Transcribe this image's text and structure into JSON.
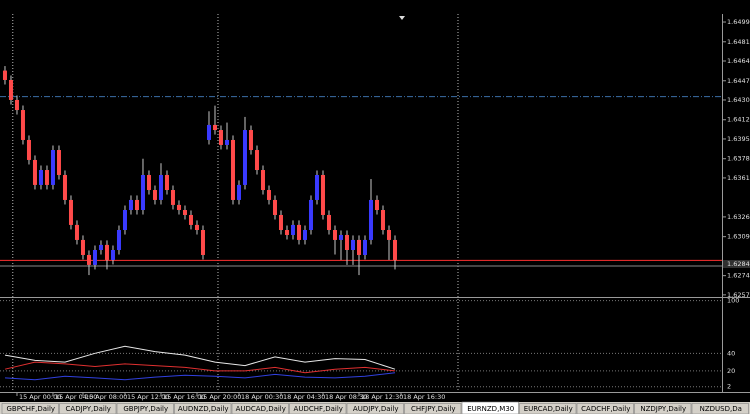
{
  "chart_data": {
    "type": "candlestick",
    "bull_color": "#3a3aff",
    "bear_color": "#ff4a4a",
    "wick_color": "#c8c8c8",
    "ohlc": [
      [
        1.6456,
        1.646,
        1.64437,
        1.64477
      ],
      [
        1.64477,
        1.64517,
        1.6426,
        1.643
      ],
      [
        1.643,
        1.6434,
        1.64171,
        1.64211
      ],
      [
        1.64211,
        1.64251,
        1.63906,
        1.63946
      ],
      [
        1.63946,
        1.63986,
        1.63729,
        1.63769
      ],
      [
        1.63769,
        1.63809,
        1.63508,
        1.63548
      ],
      [
        1.63548,
        1.6372,
        1.63508,
        1.6368
      ],
      [
        1.6368,
        1.6372,
        1.63508,
        1.63548
      ],
      [
        1.63548,
        1.63897,
        1.63508,
        1.63857
      ],
      [
        1.63857,
        1.63897,
        1.63596,
        1.63636
      ],
      [
        1.63636,
        1.63676,
        1.63375,
        1.63415
      ],
      [
        1.63415,
        1.63455,
        1.63154,
        1.63194
      ],
      [
        1.63194,
        1.63234,
        1.63021,
        1.63061
      ],
      [
        1.63061,
        1.63101,
        1.62888,
        1.62928
      ],
      [
        1.62928,
        1.62968,
        1.6275,
        1.6284
      ],
      [
        1.6284,
        1.63012,
        1.628,
        1.62972
      ],
      [
        1.62972,
        1.63057,
        1.62932,
        1.63017
      ],
      [
        1.63017,
        1.63057,
        1.628,
        1.62884
      ],
      [
        1.62884,
        1.63012,
        1.62844,
        1.62972
      ],
      [
        1.62972,
        1.63189,
        1.62932,
        1.63149
      ],
      [
        1.63149,
        1.63366,
        1.63109,
        1.63326
      ],
      [
        1.63326,
        1.63455,
        1.63286,
        1.63415
      ],
      [
        1.63415,
        1.63455,
        1.63286,
        1.63326
      ],
      [
        1.63326,
        1.6378,
        1.63286,
        1.63636
      ],
      [
        1.63636,
        1.63676,
        1.63463,
        1.63503
      ],
      [
        1.63503,
        1.63543,
        1.63375,
        1.63415
      ],
      [
        1.63415,
        1.6374,
        1.63375,
        1.63636
      ],
      [
        1.63636,
        1.63676,
        1.63463,
        1.63503
      ],
      [
        1.63503,
        1.63543,
        1.63331,
        1.63371
      ],
      [
        1.63371,
        1.63411,
        1.63286,
        1.63326
      ],
      [
        1.63326,
        1.63366,
        1.63242,
        1.63282
      ],
      [
        1.63282,
        1.63322,
        1.63154,
        1.63194
      ],
      [
        1.63194,
        1.63234,
        1.63109,
        1.63149
      ],
      [
        1.63149,
        1.63189,
        1.62888,
        1.62928
      ],
      [
        1.63946,
        1.642,
        1.63906,
        1.64079
      ],
      [
        1.64079,
        1.6425,
        1.63994,
        1.64034
      ],
      [
        1.64034,
        1.64074,
        1.63862,
        1.63902
      ],
      [
        1.63902,
        1.641,
        1.63862,
        1.63946
      ],
      [
        1.63946,
        1.63986,
        1.63375,
        1.63415
      ],
      [
        1.63415,
        1.63588,
        1.63375,
        1.63548
      ],
      [
        1.63548,
        1.6415,
        1.63508,
        1.64034
      ],
      [
        1.64034,
        1.64074,
        1.63817,
        1.63857
      ],
      [
        1.63857,
        1.63897,
        1.6364,
        1.6368
      ],
      [
        1.6368,
        1.6372,
        1.63463,
        1.63503
      ],
      [
        1.63503,
        1.63543,
        1.63375,
        1.63415
      ],
      [
        1.63415,
        1.63455,
        1.63242,
        1.63282
      ],
      [
        1.63282,
        1.63322,
        1.63109,
        1.63149
      ],
      [
        1.63149,
        1.63189,
        1.63065,
        1.63105
      ],
      [
        1.63105,
        1.63234,
        1.63065,
        1.63194
      ],
      [
        1.63194,
        1.63234,
        1.63021,
        1.63061
      ],
      [
        1.63061,
        1.63189,
        1.63021,
        1.63149
      ],
      [
        1.63149,
        1.63455,
        1.63109,
        1.63415
      ],
      [
        1.63415,
        1.63676,
        1.63375,
        1.63636
      ],
      [
        1.63636,
        1.63676,
        1.63242,
        1.63282
      ],
      [
        1.63282,
        1.63322,
        1.63109,
        1.63149
      ],
      [
        1.63149,
        1.63189,
        1.62932,
        1.63061
      ],
      [
        1.63061,
        1.63145,
        1.62884,
        1.63105
      ],
      [
        1.63105,
        1.63145,
        1.6284,
        1.62972
      ],
      [
        1.62972,
        1.63101,
        1.6284,
        1.63061
      ],
      [
        1.63061,
        1.63101,
        1.6275,
        1.62928
      ],
      [
        1.62928,
        1.63101,
        1.62888,
        1.63061
      ],
      [
        1.63061,
        1.636,
        1.63021,
        1.63415
      ],
      [
        1.63415,
        1.63455,
        1.63286,
        1.63326
      ],
      [
        1.63326,
        1.63366,
        1.63109,
        1.63149
      ],
      [
        1.63149,
        1.63189,
        1.62884,
        1.63061
      ],
      [
        1.63061,
        1.63101,
        1.628,
        1.62884
      ]
    ],
    "xlim": [
      -0.83,
      119.5
    ],
    "ylim": [
      1.62556,
      1.65061
    ],
    "yticks": [
      {
        "value": 1.6499,
        "label": "1.64990"
      },
      {
        "value": 1.64815,
        "label": "1.64815"
      },
      {
        "value": 1.64645,
        "label": "1.64645"
      },
      {
        "value": 1.6447,
        "label": "1.64470"
      },
      {
        "value": 1.643,
        "label": "1.64300"
      },
      {
        "value": 1.64125,
        "label": "1.64125"
      },
      {
        "value": 1.63955,
        "label": "1.63955"
      },
      {
        "value": 1.6378,
        "label": "1.63780"
      },
      {
        "value": 1.6361,
        "label": "1.63610"
      },
      {
        "value": 1.63265,
        "label": "1.63265"
      },
      {
        "value": 1.6309,
        "label": "1.63090"
      },
      {
        "value": 1.62745,
        "label": "1.62745"
      },
      {
        "value": 1.62575,
        "label": "1.62575"
      }
    ],
    "xticks": [
      {
        "value": 2,
        "label": "15 Apr 00:00"
      },
      {
        "value": 8,
        "label": "15 Apr 04:00"
      },
      {
        "value": 13,
        "label": "15 Apr 08:00"
      },
      {
        "value": 20,
        "label": "15 Apr 12:00"
      },
      {
        "value": 26,
        "label": "15 Apr 16:00"
      },
      {
        "value": 32,
        "label": "15 Apr 20:00"
      },
      {
        "value": 39,
        "label": "18 Apr 00:30"
      },
      {
        "value": 46,
        "label": "18 Apr 04:30"
      },
      {
        "value": 53,
        "label": "18 Apr 08:30"
      },
      {
        "value": 59,
        "label": "18 Apr 12:30"
      },
      {
        "value": 66,
        "label": "18 Apr 16:30"
      }
    ],
    "separators": [
      1.3,
      35.5,
      75.5
    ],
    "hlines": [
      {
        "value": 1.6433,
        "color": "#3b6fa8"
      },
      {
        "value": 1.6288,
        "color": "#ff3030"
      }
    ],
    "bid": 1.62848,
    "indicator": {
      "ylim": [
        -4,
        103
      ],
      "yticks": [
        100,
        40,
        20,
        2
      ],
      "x": [
        0,
        5,
        10,
        15,
        20,
        25,
        30,
        35,
        40,
        45,
        50,
        55,
        60,
        65
      ],
      "series": [
        {
          "color": "#e8e8e8",
          "values": [
            38,
            32,
            30,
            40,
            48,
            42,
            38,
            30,
            26,
            36,
            30,
            34,
            33,
            22
          ]
        },
        {
          "color": "#e03030",
          "values": [
            22,
            30,
            28,
            25,
            28,
            26,
            24,
            20,
            20,
            24,
            18,
            22,
            24,
            20
          ]
        },
        {
          "color": "#3040e0",
          "values": [
            12,
            10,
            14,
            12,
            10,
            13,
            15,
            14,
            12,
            16,
            13,
            12,
            14,
            18
          ]
        }
      ]
    }
  },
  "tabs": [
    "GBPCHF,Daily",
    "CADJPY,Daily",
    "GBPJPY,Daily",
    "AUDNZD,Daily",
    "AUDCAD,Daily",
    "AUDCHF,Daily",
    "AUDJPY,Daily",
    "CHFJPY,Daily",
    "EURNZD,M30",
    "EURCAD,Daily",
    "CADCHF,Daily",
    "NZDJPY,Daily",
    "NZDUSD,Da"
  ],
  "active_tab": 8
}
